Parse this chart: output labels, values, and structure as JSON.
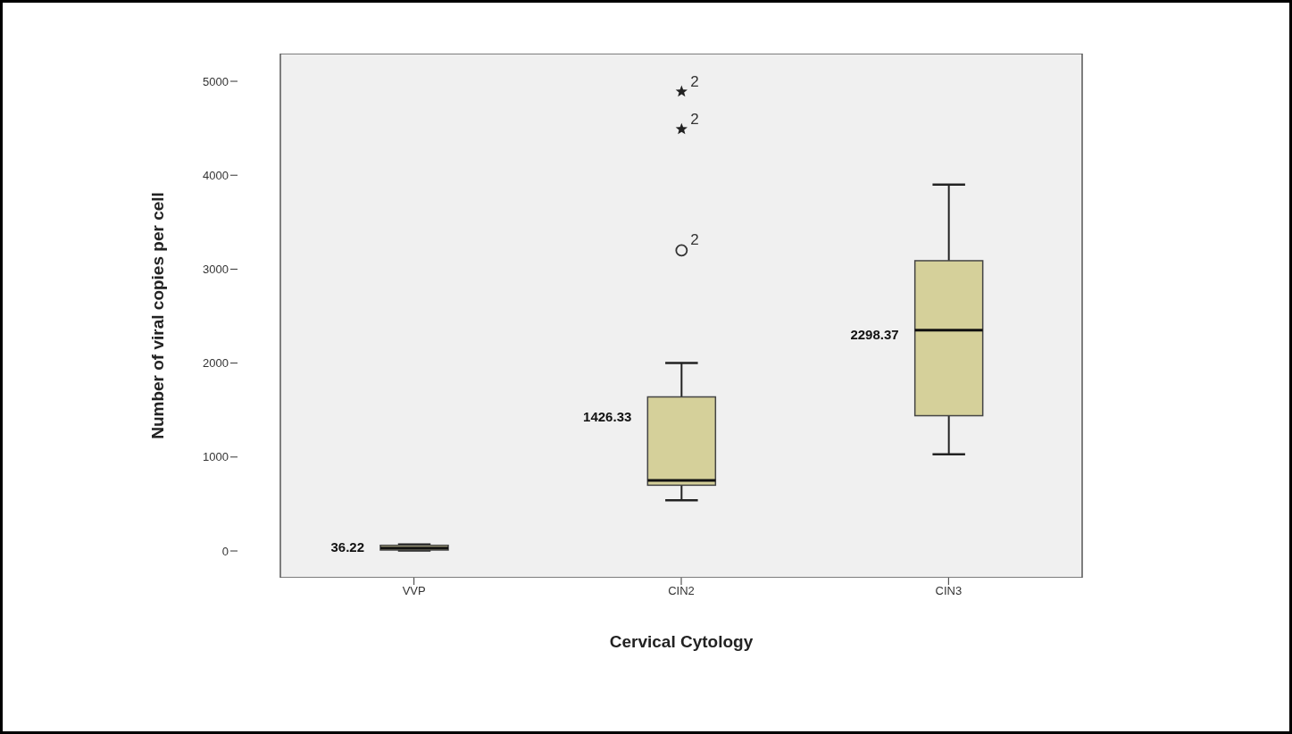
{
  "chart_data": {
    "type": "box",
    "xlabel": "Cervical Cytology",
    "ylabel": "Number of viral copies per cell",
    "categories": [
      "VVP",
      "CIN2",
      "CIN3"
    ],
    "color": "#d5d09a",
    "boxes": [
      {
        "low": 5,
        "q1": 10,
        "median": 30,
        "q3": 60,
        "high": 70
      },
      {
        "low": 540,
        "q1": 700,
        "median": 750,
        "q3": 1640,
        "high": 2000,
        "outliers": [
          3200,
          4490,
          4890
        ]
      },
      {
        "low": 1030,
        "q1": 1440,
        "median": 2350,
        "q3": 3090,
        "high": 3900
      }
    ],
    "ylim": [
      -285,
      5295
    ],
    "yticks": [
      0,
      1000,
      2000,
      3000,
      4000,
      5000
    ],
    "grid": false,
    "legend": false,
    "annotations": [
      "36.22",
      "1426.33",
      "2298.37",
      "2",
      "2",
      "2"
    ]
  }
}
